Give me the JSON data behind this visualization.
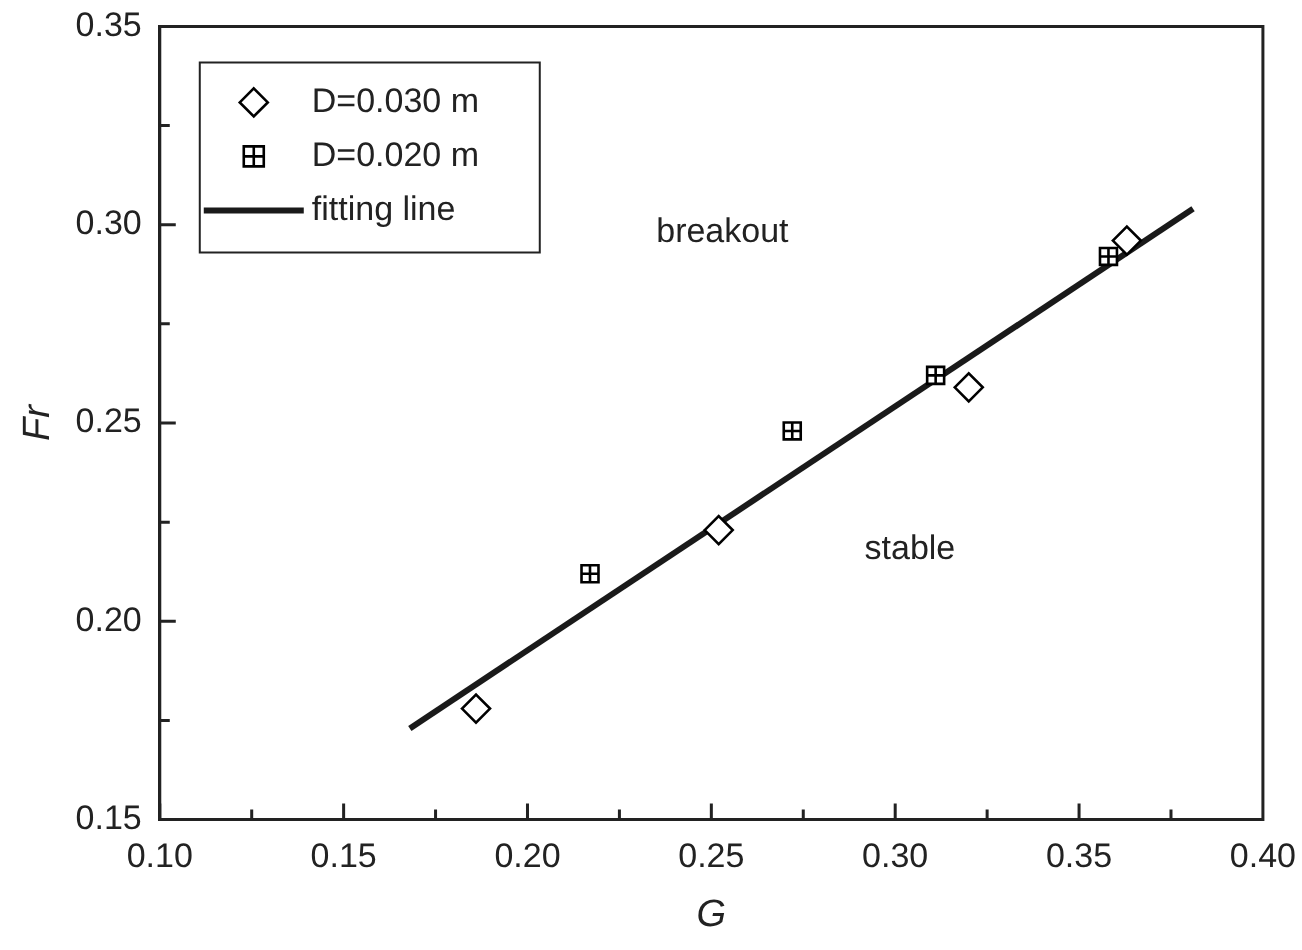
{
  "chart_data": {
    "type": "scatter",
    "xlabel": "G",
    "ylabel": "Fr",
    "xlim": [
      0.1,
      0.4
    ],
    "xticks": [
      {
        "value": 0.1,
        "label": "0.10"
      },
      {
        "value": 0.15,
        "label": "0.15"
      },
      {
        "value": 0.2,
        "label": "0.20"
      },
      {
        "value": 0.25,
        "label": "0.25"
      },
      {
        "value": 0.3,
        "label": "0.30"
      },
      {
        "value": 0.35,
        "label": "0.35"
      },
      {
        "value": 0.4,
        "label": "0.40"
      }
    ],
    "ylim": [
      0.15,
      0.35
    ],
    "yticks": [
      {
        "value": 0.15,
        "label": "0.15"
      },
      {
        "value": 0.2,
        "label": "0.20"
      },
      {
        "value": 0.25,
        "label": "0.25"
      },
      {
        "value": 0.3,
        "label": "0.30"
      },
      {
        "value": 0.35,
        "label": "0.35"
      }
    ],
    "grid": false,
    "legend": "top left",
    "annotations": [
      "breakout",
      "stable"
    ],
    "series": [
      {
        "name": "D=0.030 m",
        "type": "scatter",
        "marker": "diamond",
        "color": "#000000",
        "x": [
          0.186,
          0.252,
          0.32,
          0.363
        ],
        "values": [
          0.178,
          0.223,
          0.259,
          0.296
        ]
      },
      {
        "name": "D=0.020 m",
        "type": "scatter",
        "marker": "square",
        "color": "#000000",
        "x": [
          0.217,
          0.272,
          0.311,
          0.358
        ],
        "values": [
          0.212,
          0.248,
          0.262,
          0.292
        ]
      },
      {
        "name": "fitting line",
        "type": "line",
        "marker": "none",
        "line_style": "solid",
        "color": "#1a1a1a",
        "x": [
          0.168,
          0.381
        ],
        "values": [
          0.173,
          0.304
        ]
      }
    ]
  }
}
